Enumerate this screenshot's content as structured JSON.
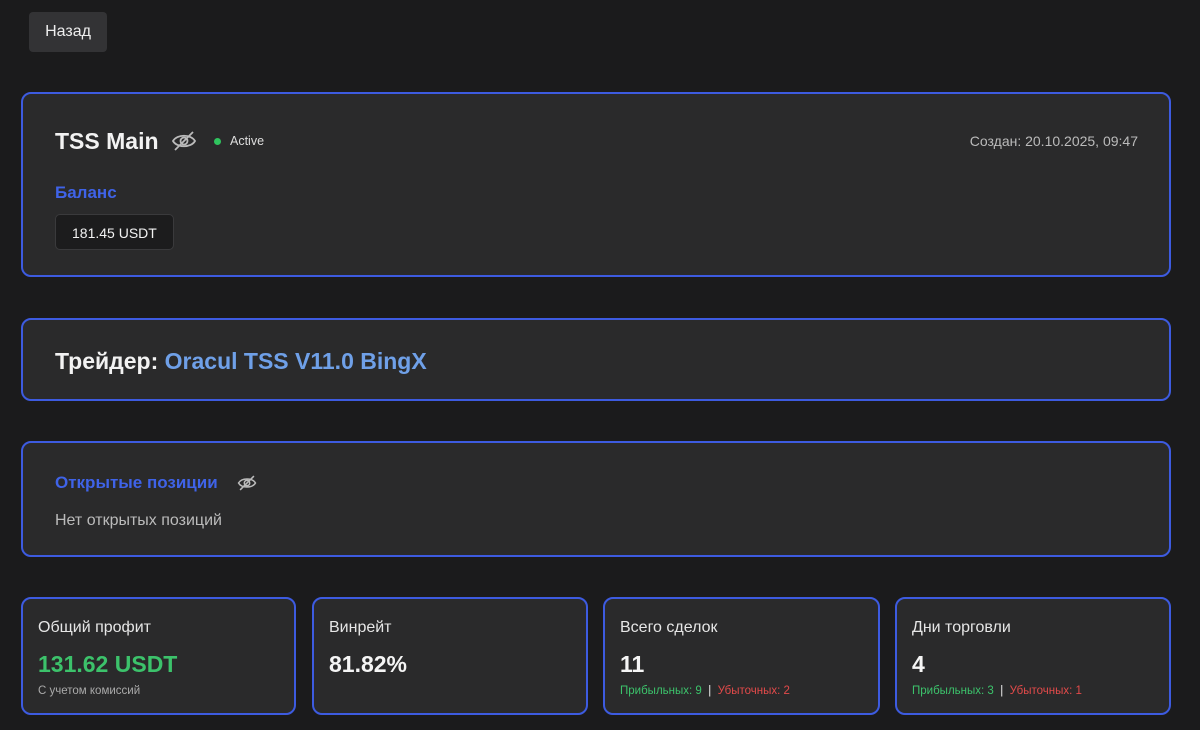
{
  "header": {
    "back_button": "Назад"
  },
  "account": {
    "name": "TSS Main",
    "status": "Active",
    "created": "Создан: 20.10.2025, 09:47",
    "balance_label": "Баланс",
    "balance": "181.45 USDT"
  },
  "trader": {
    "label": "Трейдер:",
    "name": "Oracul TSS V11.0 BingX"
  },
  "positions": {
    "title": "Открытые позиции",
    "empty": "Нет открытых позиций"
  },
  "stats": [
    {
      "label": "Общий профит",
      "value": "131.62 USDT",
      "note": "С учетом комиссий"
    },
    {
      "label": "Винрейт",
      "value": "81.82%"
    },
    {
      "label": "Всего сделок",
      "value": "11",
      "profitable": "Прибыльных: 9",
      "separator": "|",
      "losing": "Убыточных: 2"
    },
    {
      "label": "Дни торговли",
      "value": "4",
      "profitable": "Прибыльных: 3",
      "separator": "|",
      "losing": "Убыточных: 1"
    }
  ]
}
